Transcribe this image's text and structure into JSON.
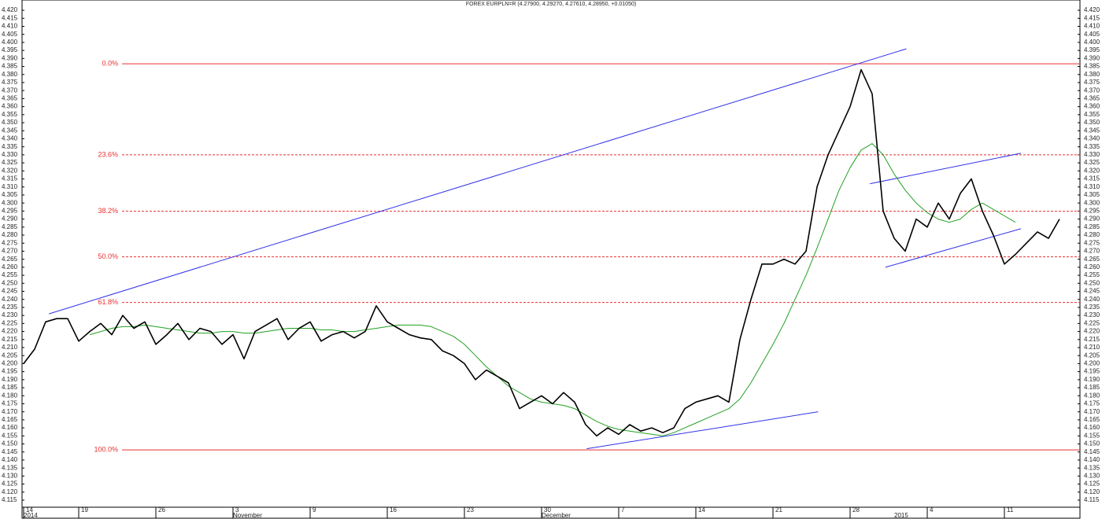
{
  "chart_data": {
    "type": "line",
    "title": "FOREX EURPLN=R (4.27900, 4.29270, 4.27610, 4.28950, +0.01050)",
    "categories": [
      "14",
      null,
      null,
      null,
      null,
      "19",
      null,
      null,
      null,
      null,
      null,
      null,
      "26",
      null,
      null,
      null,
      null,
      null,
      null,
      "3",
      null,
      null,
      null,
      null,
      null,
      null,
      "9",
      null,
      null,
      null,
      null,
      null,
      null,
      "16",
      null,
      null,
      null,
      null,
      null,
      null,
      "23",
      null,
      null,
      null,
      null,
      null,
      null,
      "30",
      null,
      null,
      null,
      null,
      null,
      null,
      "7",
      null,
      null,
      null,
      null,
      null,
      null,
      "14",
      null,
      null,
      null,
      null,
      null,
      null,
      "21",
      null,
      null,
      null,
      null,
      null,
      null,
      "28",
      null,
      null,
      null,
      null,
      null,
      null,
      "4",
      null,
      null,
      null,
      null,
      null,
      null,
      "11",
      null,
      null,
      null,
      null,
      null
    ],
    "months": [
      "2014",
      null,
      null,
      null,
      null,
      null,
      null,
      null,
      null,
      null,
      null,
      null,
      null,
      null,
      null,
      null,
      null,
      null,
      null,
      "November",
      null,
      null,
      null,
      null,
      null,
      null,
      null,
      null,
      null,
      null,
      null,
      null,
      null,
      null,
      null,
      null,
      null,
      null,
      null,
      null,
      null,
      null,
      null,
      null,
      null,
      null,
      null,
      "December",
      null,
      null,
      null,
      null,
      null,
      null,
      null,
      null,
      null,
      null,
      null,
      null,
      null,
      null,
      null,
      null,
      null,
      null,
      null,
      null,
      null,
      null,
      null,
      null,
      null,
      null,
      null,
      null,
      null,
      null,
      null,
      "2015",
      null,
      null,
      null,
      null,
      null,
      null,
      null,
      null,
      null,
      null,
      null,
      null,
      null,
      null,
      null
    ],
    "series": [
      {
        "color": "#000000",
        "values": [
          4.2,
          4.209,
          4.226,
          4.228,
          4.228,
          4.214,
          4.22,
          4.225,
          4.218,
          4.23,
          4.222,
          4.226,
          4.212,
          4.218,
          4.225,
          4.215,
          4.222,
          4.22,
          4.212,
          4.218,
          4.203,
          4.22,
          4.224,
          4.228,
          4.215,
          4.222,
          4.226,
          4.214,
          4.218,
          4.22,
          4.216,
          4.22,
          4.236,
          4.226,
          4.222,
          4.218,
          4.216,
          4.215,
          4.208,
          4.205,
          4.2,
          4.19,
          4.196,
          4.192,
          4.188,
          4.172,
          4.176,
          4.18,
          4.175,
          4.182,
          4.176,
          4.162,
          4.155,
          4.16,
          4.156,
          4.162,
          4.158,
          4.16,
          4.157,
          4.16,
          4.172,
          4.176,
          4.178,
          4.18,
          4.176,
          4.215,
          4.24,
          4.262,
          4.262,
          4.265,
          4.262,
          4.27,
          4.31,
          4.33,
          4.345,
          4.36,
          4.383,
          4.368,
          4.295,
          4.278,
          4.27,
          4.29,
          4.285,
          4.3,
          4.29,
          4.306,
          4.315,
          4.295,
          4.28,
          4.262,
          4.268,
          4.275,
          4.282,
          4.278,
          4.29
        ]
      },
      {
        "color": "#22a022",
        "values": [
          null,
          null,
          null,
          null,
          null,
          null,
          4.218,
          4.22,
          4.222,
          4.223,
          4.223,
          4.224,
          4.223,
          4.222,
          4.221,
          4.22,
          4.219,
          4.219,
          4.22,
          4.22,
          4.219,
          4.219,
          4.22,
          4.221,
          4.222,
          4.222,
          4.222,
          4.221,
          4.221,
          4.22,
          4.22,
          4.221,
          4.222,
          4.223,
          4.224,
          4.224,
          4.224,
          4.223,
          4.22,
          4.217,
          4.212,
          4.205,
          4.198,
          4.192,
          4.186,
          4.182,
          4.178,
          4.176,
          4.175,
          4.174,
          4.172,
          4.168,
          4.164,
          4.161,
          4.159,
          4.158,
          4.157,
          4.156,
          4.155,
          4.157,
          4.16,
          4.163,
          4.166,
          4.169,
          4.172,
          4.178,
          4.188,
          4.2,
          4.212,
          4.225,
          4.24,
          4.255,
          4.272,
          4.29,
          4.308,
          4.322,
          4.333,
          4.337,
          4.33,
          4.318,
          4.308,
          4.3,
          4.294,
          4.29,
          4.288,
          4.29,
          4.296,
          4.3,
          4.296,
          4.292,
          4.288,
          null,
          null,
          null,
          null
        ]
      }
    ],
    "trendlines": [
      {
        "color": "#3030e8",
        "x": [
          2.3,
          80.1
        ],
        "y": [
          4.231,
          4.396
        ]
      },
      {
        "color": "#3030e8",
        "x": [
          51.1,
          72.1
        ],
        "y": [
          4.147,
          4.17
        ]
      },
      {
        "color": "#3030e8",
        "x": [
          76.8,
          90.5
        ],
        "y": [
          4.312,
          4.331
        ]
      },
      {
        "color": "#3030e8",
        "x": [
          78.2,
          90.5
        ],
        "y": [
          4.26,
          4.284
        ]
      }
    ],
    "fib_color": "#e83030",
    "fib_levels": [
      {
        "label": "0.0%",
        "value": 4.3867,
        "dashed": false
      },
      {
        "label": "23.6%",
        "value": 4.33,
        "dashed": true
      },
      {
        "label": "38.2%",
        "value": 4.2949,
        "dashed": true
      },
      {
        "label": "50.0%",
        "value": 4.2665,
        "dashed": true
      },
      {
        "label": "61.8%",
        "value": 4.2381,
        "dashed": true
      },
      {
        "label": "100.0%",
        "value": 4.1463,
        "dashed": false
      }
    ],
    "ylim": [
      4.1106,
      4.4264
    ],
    "yticks": [
      4.115,
      {
        "value": 4.12,
        "label": "4.120"
      },
      4.125,
      {
        "value": 4.13,
        "label": "4.130"
      },
      4.135,
      {
        "value": 4.14,
        "label": "4.140"
      },
      4.145,
      {
        "value": 4.15,
        "label": "4.150"
      },
      4.155,
      {
        "value": 4.16,
        "label": "4.160"
      },
      4.165,
      {
        "value": 4.17,
        "label": "4.170"
      },
      4.175,
      {
        "value": 4.18,
        "label": "4.180"
      },
      4.185,
      {
        "value": 4.19,
        "label": "4.190"
      },
      4.195,
      {
        "value": 4.2,
        "label": "4.200"
      },
      4.205,
      {
        "value": 4.21,
        "label": "4.210"
      },
      4.215,
      {
        "value": 4.22,
        "label": "4.220"
      },
      4.225,
      {
        "value": 4.23,
        "label": "4.230"
      },
      4.235,
      {
        "value": 4.24,
        "label": "4.240"
      },
      4.245,
      {
        "value": 4.25,
        "label": "4.250"
      },
      4.255,
      {
        "value": 4.26,
        "label": "4.260"
      },
      4.265,
      {
        "value": 4.27,
        "label": "4.270"
      },
      4.275,
      {
        "value": 4.28,
        "label": "4.280"
      },
      4.285,
      {
        "value": 4.29,
        "label": "4.290"
      },
      4.295,
      {
        "value": 4.3,
        "label": "4.300"
      },
      4.305,
      {
        "value": 4.31,
        "label": "4.310"
      },
      4.315,
      {
        "value": 4.32,
        "label": "4.320"
      },
      4.325,
      {
        "value": 4.33,
        "label": "4.330"
      },
      4.335,
      {
        "value": 4.34,
        "label": "4.340"
      },
      4.345,
      {
        "value": 4.35,
        "label": "4.350"
      },
      4.355,
      {
        "value": 4.36,
        "label": "4.360"
      },
      4.365,
      {
        "value": 4.37,
        "label": "4.370"
      },
      4.375,
      {
        "value": 4.38,
        "label": "4.380"
      },
      4.385,
      {
        "value": 4.39,
        "label": "4.390"
      },
      4.395,
      {
        "value": 4.4,
        "label": "4.400"
      },
      4.405,
      {
        "value": 4.41,
        "label": "4.410"
      },
      4.415,
      {
        "value": 4.42,
        "label": "4.420"
      }
    ]
  }
}
